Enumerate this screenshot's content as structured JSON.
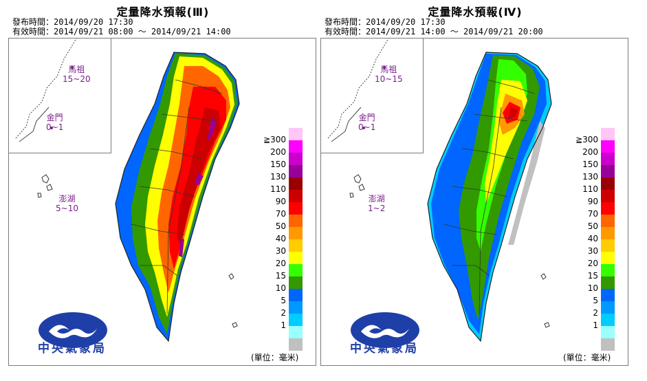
{
  "panels": [
    {
      "title": "定量降水預報(Ⅲ)",
      "issue_line": "發布時間：2014/09/20 17:30",
      "valid_line": "有效時間：2014/09/21 08:00 ～ 2014/09/21 14:00",
      "islands": {
        "matsu": {
          "name": "馬祖",
          "range": "15~20"
        },
        "kinmen": {
          "name": "金門",
          "range": "0~1"
        },
        "penghu": {
          "name": "澎湖",
          "range": "5~10"
        }
      }
    },
    {
      "title": "定量降水預報(Ⅳ)",
      "issue_line": "發布時間：2014/09/20 17:30",
      "valid_line": "有效時間：2014/09/21 14:00 ～ 2014/09/21 20:00",
      "islands": {
        "matsu": {
          "name": "馬祖",
          "range": "10~15"
        },
        "kinmen": {
          "name": "金門",
          "range": "0~1"
        },
        "penghu": {
          "name": "澎湖",
          "range": "1~2"
        }
      }
    }
  ],
  "legend": [
    {
      "label": "≧300",
      "color": "#ffc6f7"
    },
    {
      "label": "200",
      "color": "#ff00ff"
    },
    {
      "label": "150",
      "color": "#cc00cc"
    },
    {
      "label": "130",
      "color": "#990099"
    },
    {
      "label": "110",
      "color": "#990000"
    },
    {
      "label": "90",
      "color": "#cc0000"
    },
    {
      "label": "70",
      "color": "#ff0000"
    },
    {
      "label": "50",
      "color": "#ff6600"
    },
    {
      "label": "40",
      "color": "#ff9900"
    },
    {
      "label": "30",
      "color": "#ffcc00"
    },
    {
      "label": "20",
      "color": "#ffff00"
    },
    {
      "label": "15",
      "color": "#33ff00"
    },
    {
      "label": "10",
      "color": "#339900"
    },
    {
      "label": "5",
      "color": "#0066ff"
    },
    {
      "label": "2",
      "color": "#0099ff"
    },
    {
      "label": "1",
      "color": "#00ccff"
    },
    {
      "label": "",
      "color": "#99ffff"
    },
    {
      "label": "",
      "color": "#c0c0c0"
    }
  ],
  "unit_label": "(單位：毫米)",
  "agency": "中央氣象局"
}
